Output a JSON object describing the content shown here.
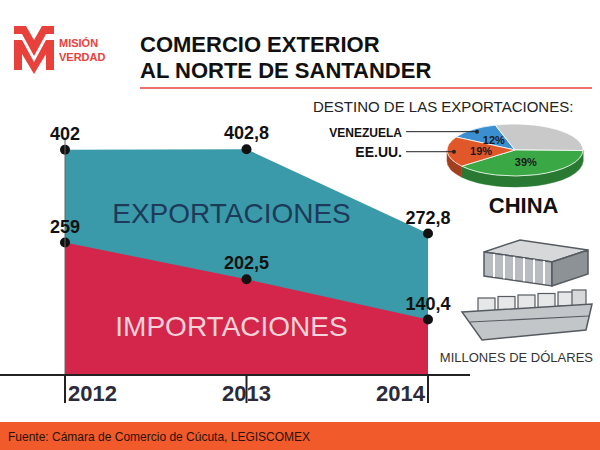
{
  "header": {
    "logo": [
      "MISIÓN",
      "VERDAD"
    ],
    "title": [
      "COMERCIO EXTERIOR",
      "AL NORTE DE SANTANDER"
    ]
  },
  "footer": {
    "source": "Fuente: Cámara de Comercio de Cúcuta, LEGISCOMEX"
  },
  "chart_data": [
    {
      "type": "area",
      "ylabel": "MILLONES DE DÓLARES",
      "categories": [
        "2012",
        "2013",
        "2014"
      ],
      "series": [
        {
          "name": "EXPORTACIONES",
          "color": "#3a9aa9",
          "values": [
            402,
            402.8,
            272.8
          ],
          "value_labels": [
            "402",
            "402,8",
            "272,8"
          ]
        },
        {
          "name": "IMPORTACIONES",
          "color": "#d3264a",
          "values": [
            259,
            202.5,
            140.4
          ],
          "value_labels": [
            "259",
            "202,5",
            "140,4"
          ]
        }
      ],
      "ylim": [
        55,
        420
      ],
      "stacked": false,
      "data_labels": true,
      "tick_labels": "x",
      "marker": "circle",
      "grid": false
    },
    {
      "type": "pie",
      "title": "DESTINO DE LAS EXPORTACIONES:",
      "categories": [
        "VENEZUELA",
        null,
        "CHINA",
        "EE.UU."
      ],
      "values": [
        12,
        30,
        39,
        19
      ],
      "value_labels": [
        "12%",
        null,
        "39%",
        "19%"
      ],
      "colors": [
        "#3b8fd0",
        "#c9c9c9",
        "#3aa845",
        "#e0572a"
      ],
      "data_labels": true
    }
  ]
}
